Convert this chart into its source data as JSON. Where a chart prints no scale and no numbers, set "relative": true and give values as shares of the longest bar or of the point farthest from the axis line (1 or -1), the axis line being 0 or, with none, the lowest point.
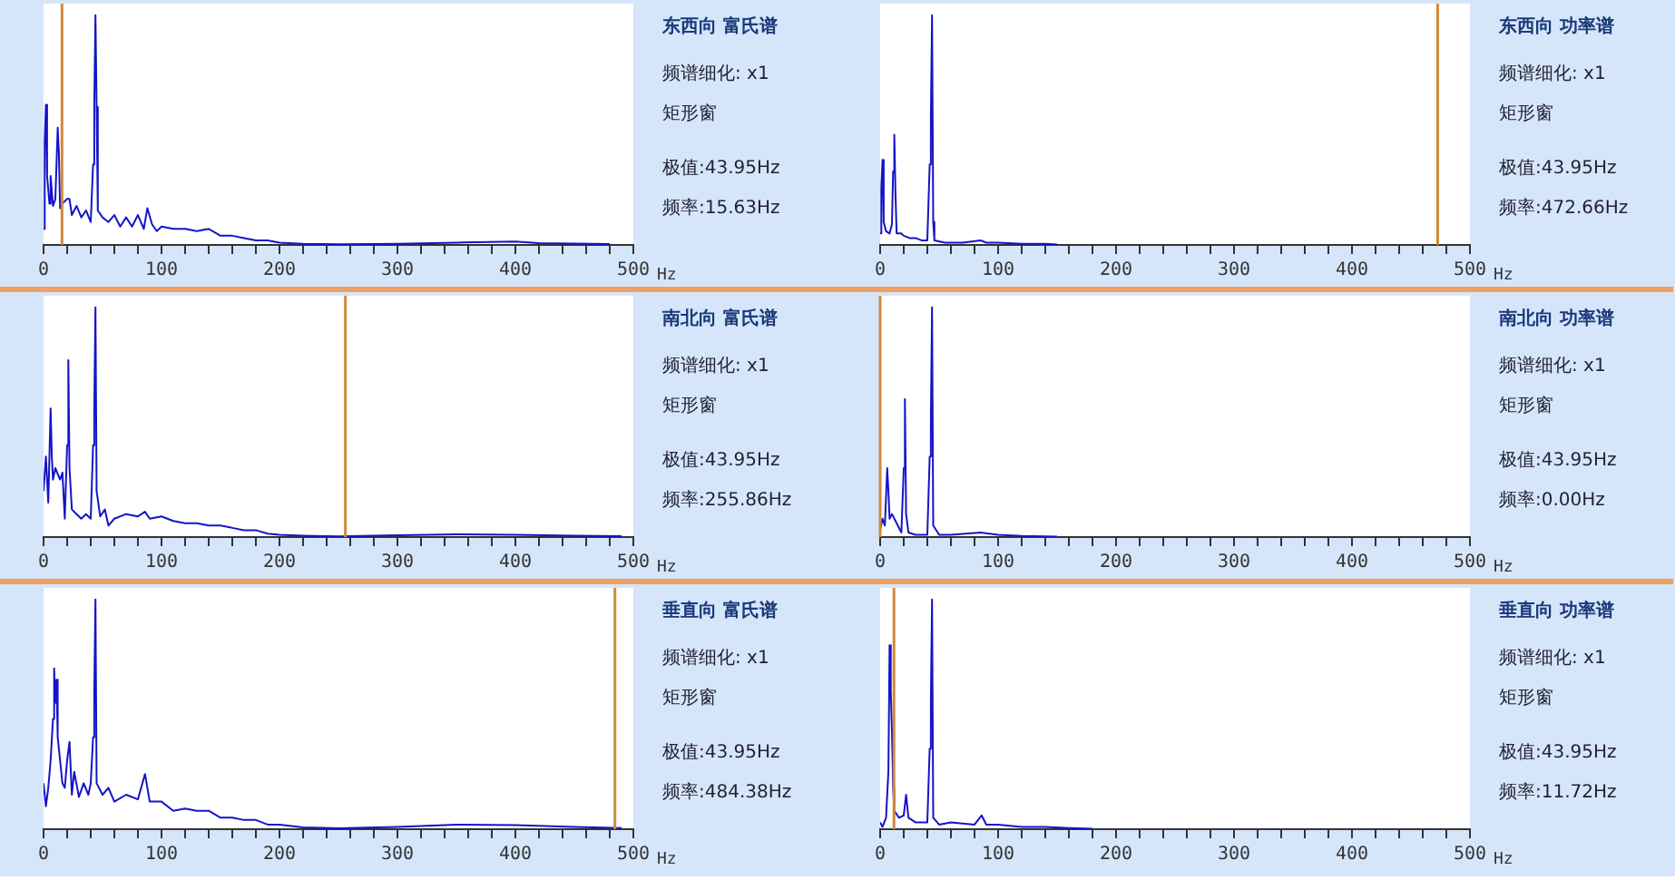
{
  "chart_data": [
    {
      "type": "line",
      "relative": true,
      "xlabel": "Hz",
      "xlim": [
        0,
        500
      ],
      "xticks": [
        0,
        {
          "value": 20,
          "label": null
        },
        {
          "value": 40,
          "label": null
        },
        {
          "value": 60,
          "label": null
        },
        {
          "value": 80,
          "label": null
        },
        100,
        {
          "value": 120,
          "label": null
        },
        {
          "value": 140,
          "label": null
        },
        {
          "value": 160,
          "label": null
        },
        {
          "value": 180,
          "label": null
        },
        200,
        {
          "value": 220,
          "label": null
        },
        {
          "value": 240,
          "label": null
        },
        {
          "value": 260,
          "label": null
        },
        {
          "value": 280,
          "label": null
        },
        300,
        {
          "value": 320,
          "label": null
        },
        {
          "value": 340,
          "label": null
        },
        {
          "value": 360,
          "label": null
        },
        {
          "value": 380,
          "label": null
        },
        400,
        {
          "value": 420,
          "label": null
        },
        {
          "value": 440,
          "label": null
        },
        {
          "value": 460,
          "label": null
        },
        {
          "value": 480,
          "label": null
        },
        500
      ],
      "annotations": [
        "东西向 富氏谱",
        "频谱细化: x1",
        "矩形窗",
        "极值:43.95Hz",
        "频率:15.63Hz"
      ],
      "ref_lines": [
        {
          "axis": "x",
          "value": 15.63,
          "color": "#d08a3a"
        }
      ],
      "series": [
        {
          "color": "#1414c8",
          "x": [
            0,
            1,
            2,
            3,
            5,
            6,
            8,
            10,
            12,
            13,
            14,
            16,
            20,
            22,
            24,
            28,
            32,
            36,
            40,
            42,
            43,
            44,
            45,
            46,
            50,
            55,
            60,
            65,
            70,
            75,
            80,
            85,
            88,
            92,
            96,
            100,
            110,
            120,
            130,
            140,
            150,
            160,
            170,
            180,
            190,
            200,
            220,
            250,
            300,
            350,
            400,
            420,
            450,
            480
          ],
          "values": [
            0.07,
            0.45,
            0.61,
            0.3,
            0.18,
            0.3,
            0.17,
            0.2,
            0.51,
            0.4,
            0.16,
            0.18,
            0.2,
            0.2,
            0.13,
            0.17,
            0.12,
            0.15,
            0.1,
            0.35,
            0.61,
            1,
            0.6,
            0.15,
            0.12,
            0.1,
            0.13,
            0.08,
            0.12,
            0.08,
            0.13,
            0.07,
            0.16,
            0.09,
            0.06,
            0.08,
            0.07,
            0.07,
            0.06,
            0.07,
            0.04,
            0.04,
            0.03,
            0.02,
            0.02,
            0.01,
            0.005,
            0.003,
            0.005,
            0.01,
            0.015,
            0.008,
            0.006,
            0.004
          ]
        }
      ]
    },
    {
      "type": "line",
      "relative": true,
      "xlabel": "Hz",
      "xlim": [
        0,
        500
      ],
      "xticks": [
        0,
        {
          "value": 20,
          "label": null
        },
        {
          "value": 40,
          "label": null
        },
        {
          "value": 60,
          "label": null
        },
        {
          "value": 80,
          "label": null
        },
        100,
        {
          "value": 120,
          "label": null
        },
        {
          "value": 140,
          "label": null
        },
        {
          "value": 160,
          "label": null
        },
        {
          "value": 180,
          "label": null
        },
        200,
        {
          "value": 220,
          "label": null
        },
        {
          "value": 240,
          "label": null
        },
        {
          "value": 260,
          "label": null
        },
        {
          "value": 280,
          "label": null
        },
        300,
        {
          "value": 320,
          "label": null
        },
        {
          "value": 340,
          "label": null
        },
        {
          "value": 360,
          "label": null
        },
        {
          "value": 380,
          "label": null
        },
        400,
        {
          "value": 420,
          "label": null
        },
        {
          "value": 440,
          "label": null
        },
        {
          "value": 460,
          "label": null
        },
        {
          "value": 480,
          "label": null
        },
        500
      ],
      "annotations": [
        "东西向 功率谱",
        "频谱细化: x1",
        "矩形窗",
        "极值:43.95Hz",
        "频率:472.66Hz"
      ],
      "ref_lines": [
        {
          "axis": "x",
          "value": 472.66,
          "color": "#d08a3a"
        }
      ],
      "series": [
        {
          "color": "#1414c8",
          "x": [
            0,
            1,
            2,
            3,
            5,
            8,
            10,
            11,
            12,
            13,
            14,
            18,
            20,
            25,
            30,
            35,
            40,
            42,
            43,
            44,
            45,
            46,
            55,
            70,
            85,
            90,
            100,
            120,
            140,
            150
          ],
          "values": [
            0.05,
            0.25,
            0.37,
            0.1,
            0.06,
            0.05,
            0.09,
            0.32,
            0.48,
            0.22,
            0.05,
            0.05,
            0.04,
            0.03,
            0.03,
            0.02,
            0.02,
            0.35,
            0.55,
            1,
            0.1,
            0.02,
            0.01,
            0.01,
            0.02,
            0.01,
            0.01,
            0.005,
            0.005,
            0.002
          ]
        }
      ]
    },
    {
      "type": "line",
      "relative": true,
      "xlabel": "Hz",
      "xlim": [
        0,
        500
      ],
      "xticks": [
        0,
        {
          "value": 20,
          "label": null
        },
        {
          "value": 40,
          "label": null
        },
        {
          "value": 60,
          "label": null
        },
        {
          "value": 80,
          "label": null
        },
        100,
        {
          "value": 120,
          "label": null
        },
        {
          "value": 140,
          "label": null
        },
        {
          "value": 160,
          "label": null
        },
        {
          "value": 180,
          "label": null
        },
        200,
        {
          "value": 220,
          "label": null
        },
        {
          "value": 240,
          "label": null
        },
        {
          "value": 260,
          "label": null
        },
        {
          "value": 280,
          "label": null
        },
        300,
        {
          "value": 320,
          "label": null
        },
        {
          "value": 340,
          "label": null
        },
        {
          "value": 360,
          "label": null
        },
        {
          "value": 380,
          "label": null
        },
        400,
        {
          "value": 420,
          "label": null
        },
        {
          "value": 440,
          "label": null
        },
        {
          "value": 460,
          "label": null
        },
        {
          "value": 480,
          "label": null
        },
        500
      ],
      "annotations": [
        "南北向 富氏谱",
        "频谱细化: x1",
        "矩形窗",
        "极值:43.95Hz",
        "频率:255.86Hz"
      ],
      "ref_lines": [
        {
          "axis": "x",
          "value": 255.86,
          "color": "#d08a3a"
        }
      ],
      "series": [
        {
          "color": "#1414c8",
          "x": [
            0,
            2,
            4,
            6,
            7,
            8,
            10,
            14,
            16,
            18,
            20,
            21,
            22,
            24,
            28,
            32,
            36,
            40,
            42,
            43,
            44,
            45,
            48,
            52,
            55,
            60,
            70,
            80,
            86,
            90,
            100,
            110,
            120,
            130,
            140,
            150,
            160,
            170,
            180,
            190,
            200,
            220,
            250,
            300,
            350,
            400,
            450,
            490
          ],
          "values": [
            0.2,
            0.35,
            0.15,
            0.56,
            0.35,
            0.25,
            0.3,
            0.25,
            0.28,
            0.08,
            0.4,
            0.77,
            0.3,
            0.12,
            0.1,
            0.08,
            0.1,
            0.08,
            0.4,
            0.56,
            1,
            0.2,
            0.09,
            0.12,
            0.05,
            0.08,
            0.1,
            0.09,
            0.11,
            0.08,
            0.09,
            0.07,
            0.06,
            0.06,
            0.05,
            0.05,
            0.04,
            0.03,
            0.03,
            0.015,
            0.01,
            0.006,
            0.003,
            0.008,
            0.012,
            0.01,
            0.006,
            0.004
          ]
        }
      ]
    },
    {
      "type": "line",
      "relative": true,
      "xlabel": "Hz",
      "xlim": [
        0,
        500
      ],
      "xticks": [
        0,
        {
          "value": 20,
          "label": null
        },
        {
          "value": 40,
          "label": null
        },
        {
          "value": 60,
          "label": null
        },
        {
          "value": 80,
          "label": null
        },
        100,
        {
          "value": 120,
          "label": null
        },
        {
          "value": 140,
          "label": null
        },
        {
          "value": 160,
          "label": null
        },
        {
          "value": 180,
          "label": null
        },
        200,
        {
          "value": 220,
          "label": null
        },
        {
          "value": 240,
          "label": null
        },
        {
          "value": 260,
          "label": null
        },
        {
          "value": 280,
          "label": null
        },
        300,
        {
          "value": 320,
          "label": null
        },
        {
          "value": 340,
          "label": null
        },
        {
          "value": 360,
          "label": null
        },
        {
          "value": 380,
          "label": null
        },
        400,
        {
          "value": 420,
          "label": null
        },
        {
          "value": 440,
          "label": null
        },
        {
          "value": 460,
          "label": null
        },
        {
          "value": 480,
          "label": null
        },
        500
      ],
      "annotations": [
        "南北向 功率谱",
        "频谱细化: x1",
        "矩形窗",
        "极值:43.95Hz",
        "频率:0.00Hz"
      ],
      "ref_lines": [
        {
          "axis": "x",
          "value": 0.0,
          "color": "#d08a3a"
        }
      ],
      "series": [
        {
          "color": "#1414c8",
          "x": [
            0,
            2,
            4,
            6,
            7,
            8,
            10,
            14,
            18,
            20,
            21,
            22,
            24,
            30,
            40,
            42,
            43,
            44,
            45,
            50,
            60,
            85,
            100,
            120,
            150
          ],
          "values": [
            0.03,
            0.08,
            0.05,
            0.3,
            0.2,
            0.08,
            0.1,
            0.06,
            0.02,
            0.3,
            0.6,
            0.1,
            0.02,
            0.01,
            0.01,
            0.35,
            0.5,
            1,
            0.05,
            0.01,
            0.01,
            0.02,
            0.01,
            0.005,
            0.002
          ]
        }
      ]
    },
    {
      "type": "line",
      "relative": true,
      "xlabel": "Hz",
      "xlim": [
        0,
        500
      ],
      "xticks": [
        0,
        {
          "value": 20,
          "label": null
        },
        {
          "value": 40,
          "label": null
        },
        {
          "value": 60,
          "label": null
        },
        {
          "value": 80,
          "label": null
        },
        100,
        {
          "value": 120,
          "label": null
        },
        {
          "value": 140,
          "label": null
        },
        {
          "value": 160,
          "label": null
        },
        {
          "value": 180,
          "label": null
        },
        200,
        {
          "value": 220,
          "label": null
        },
        {
          "value": 240,
          "label": null
        },
        {
          "value": 260,
          "label": null
        },
        {
          "value": 280,
          "label": null
        },
        300,
        {
          "value": 320,
          "label": null
        },
        {
          "value": 340,
          "label": null
        },
        {
          "value": 360,
          "label": null
        },
        {
          "value": 380,
          "label": null
        },
        400,
        {
          "value": 420,
          "label": null
        },
        {
          "value": 440,
          "label": null
        },
        {
          "value": 460,
          "label": null
        },
        {
          "value": 480,
          "label": null
        },
        500
      ],
      "annotations": [
        "垂直向 富氏谱",
        "频谱细化: x1",
        "矩形窗",
        "极值:43.95Hz",
        "频率:484.38Hz"
      ],
      "ref_lines": [
        {
          "axis": "x",
          "value": 484.38,
          "color": "#d08a3a"
        }
      ],
      "series": [
        {
          "color": "#1414c8",
          "x": [
            0,
            2,
            4,
            6,
            8,
            9,
            10,
            11,
            12,
            14,
            16,
            18,
            20,
            22,
            24,
            26,
            30,
            34,
            38,
            40,
            42,
            43,
            44,
            45,
            50,
            55,
            60,
            70,
            80,
            86,
            90,
            100,
            110,
            120,
            130,
            140,
            150,
            160,
            170,
            180,
            190,
            200,
            220,
            250,
            300,
            350,
            400,
            450,
            490
          ],
          "values": [
            0.2,
            0.1,
            0.18,
            0.3,
            0.48,
            0.7,
            0.55,
            0.65,
            0.4,
            0.3,
            0.2,
            0.18,
            0.3,
            0.38,
            0.15,
            0.25,
            0.14,
            0.2,
            0.15,
            0.2,
            0.4,
            0.6,
            1,
            0.2,
            0.15,
            0.18,
            0.12,
            0.15,
            0.13,
            0.24,
            0.12,
            0.12,
            0.08,
            0.09,
            0.08,
            0.08,
            0.05,
            0.05,
            0.04,
            0.04,
            0.02,
            0.02,
            0.008,
            0.004,
            0.01,
            0.02,
            0.018,
            0.01,
            0.005
          ]
        }
      ]
    },
    {
      "type": "line",
      "relative": true,
      "xlabel": "Hz",
      "xlim": [
        0,
        500
      ],
      "xticks": [
        0,
        {
          "value": 20,
          "label": null
        },
        {
          "value": 40,
          "label": null
        },
        {
          "value": 60,
          "label": null
        },
        {
          "value": 80,
          "label": null
        },
        100,
        {
          "value": 120,
          "label": null
        },
        {
          "value": 140,
          "label": null
        },
        {
          "value": 160,
          "label": null
        },
        {
          "value": 180,
          "label": null
        },
        200,
        {
          "value": 220,
          "label": null
        },
        {
          "value": 240,
          "label": null
        },
        {
          "value": 260,
          "label": null
        },
        {
          "value": 280,
          "label": null
        },
        300,
        {
          "value": 320,
          "label": null
        },
        {
          "value": 340,
          "label": null
        },
        {
          "value": 360,
          "label": null
        },
        {
          "value": 380,
          "label": null
        },
        400,
        {
          "value": 420,
          "label": null
        },
        {
          "value": 440,
          "label": null
        },
        {
          "value": 460,
          "label": null
        },
        {
          "value": 480,
          "label": null
        },
        500
      ],
      "annotations": [
        "垂直向 功率谱",
        "频谱细化: x1",
        "矩形窗",
        "极值:43.95Hz",
        "频率:11.72Hz"
      ],
      "ref_lines": [
        {
          "axis": "x",
          "value": 11.72,
          "color": "#d08a3a"
        }
      ],
      "series": [
        {
          "color": "#1414c8",
          "x": [
            0,
            2,
            5,
            7,
            8,
            9,
            10,
            11,
            12,
            16,
            20,
            22,
            24,
            30,
            40,
            42,
            43,
            44,
            45,
            50,
            60,
            80,
            86,
            90,
            100,
            120,
            140,
            160,
            180
          ],
          "values": [
            0.03,
            0.01,
            0.05,
            0.25,
            0.8,
            0.6,
            0.43,
            0.18,
            0.08,
            0.05,
            0.06,
            0.15,
            0.05,
            0.03,
            0.03,
            0.35,
            0.55,
            1,
            0.05,
            0.02,
            0.03,
            0.02,
            0.06,
            0.02,
            0.02,
            0.01,
            0.01,
            0.005,
            0.002
          ]
        }
      ]
    }
  ]
}
